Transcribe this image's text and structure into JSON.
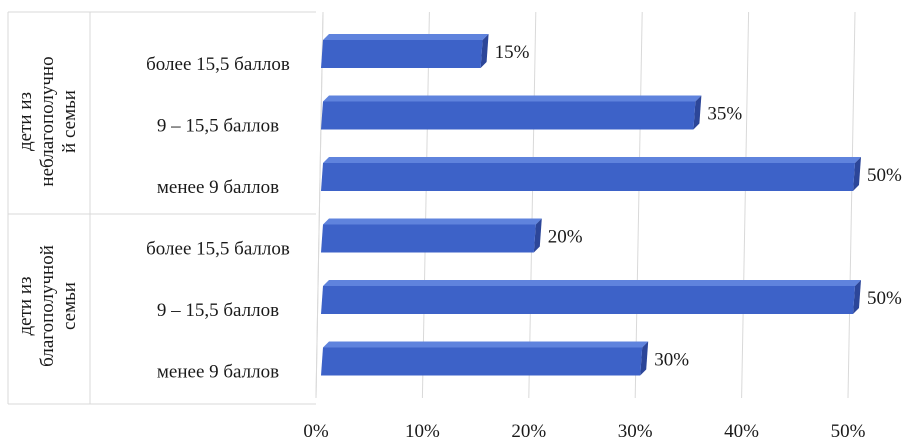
{
  "chart_data": {
    "type": "bar",
    "orientation": "horizontal",
    "style": "3d-cylinder-bars",
    "bar_color": "#3d62c8",
    "grid": true,
    "legend": "none",
    "title": "",
    "xlabel": "",
    "ylabel": "",
    "xlim": [
      0,
      50
    ],
    "x_ticks": [
      "0%",
      "10%",
      "20%",
      "30%",
      "40%",
      "50%"
    ],
    "groups": [
      {
        "label": "дети из неблагополучной семьи",
        "label_lines": [
          "дети из",
          "неблагополучно",
          "й семьи"
        ],
        "categories": [
          "более 15,5 баллов",
          "9 – 15,5 баллов",
          "менее 9 баллов"
        ],
        "values": [
          15,
          35,
          50
        ],
        "data_labels": [
          "15%",
          "35%",
          "50%"
        ]
      },
      {
        "label": "дети из благополучной семьи",
        "label_lines": [
          "дети из",
          "благополучной",
          "семьи"
        ],
        "categories": [
          "более 15,5 баллов",
          "9 – 15,5 баллов",
          "менее 9 баллов"
        ],
        "values": [
          20,
          50,
          30
        ],
        "data_labels": [
          "20%",
          "50%",
          "30%"
        ]
      }
    ]
  }
}
